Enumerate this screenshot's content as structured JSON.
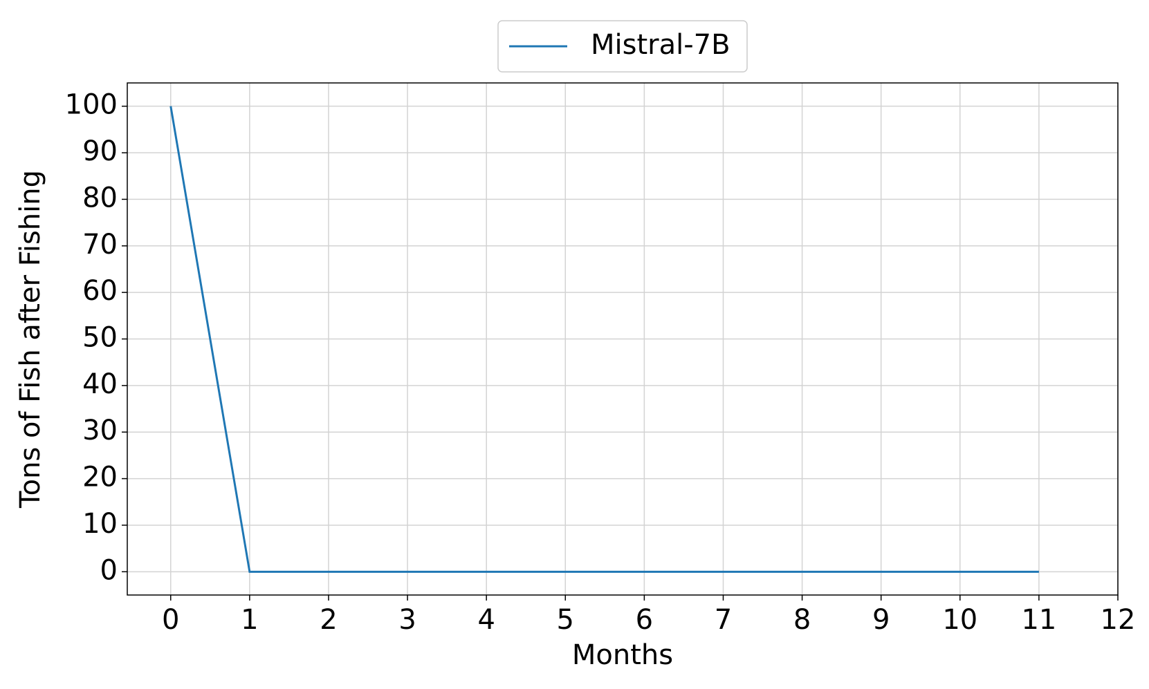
{
  "chart_data": {
    "type": "line",
    "x": [
      0,
      1,
      2,
      3,
      4,
      5,
      6,
      7,
      8,
      9,
      10,
      11
    ],
    "series": [
      {
        "name": "Mistral-7B",
        "color": "#1f77b4",
        "values": [
          100,
          0,
          0,
          0,
          0,
          0,
          0,
          0,
          0,
          0,
          0,
          0
        ]
      }
    ],
    "xlabel": "Months",
    "ylabel": "Tons of Fish after Fishing",
    "xlim": [
      -0.55,
      12
    ],
    "xticks": [
      0,
      1,
      2,
      3,
      4,
      5,
      6,
      7,
      8,
      9,
      10,
      11,
      12
    ],
    "ylim": [
      -5,
      105
    ],
    "yticks": [
      0,
      10,
      20,
      30,
      40,
      50,
      60,
      70,
      80,
      90,
      100
    ],
    "grid": true,
    "legend": "upper center"
  }
}
